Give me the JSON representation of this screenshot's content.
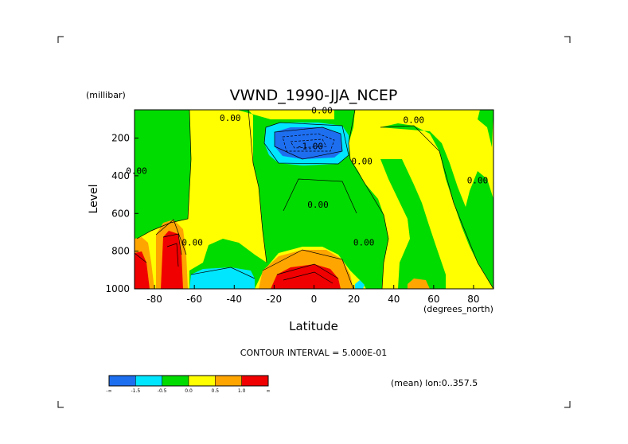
{
  "chart_data": {
    "type": "heatmap",
    "title": "VWND_1990-JJA_NCEP",
    "ylabel": "Level",
    "yunits": "(millibar)",
    "xlabel": "Latitude",
    "xunits": "(degrees_north)",
    "xlim": [
      -90,
      90
    ],
    "ylim": [
      1000,
      50
    ],
    "x_ticks": [
      -80,
      -60,
      -40,
      -20,
      0,
      20,
      40,
      60,
      80
    ],
    "y_ticks": [
      200,
      400,
      600,
      800,
      1000
    ],
    "contour_interval_text": "CONTOUR INTERVAL = 5.000E-01",
    "footer_text": "(mean) lon:0..357.5",
    "contour_labels": [
      {
        "text": "0.00",
        "lat": -42,
        "level": 110
      },
      {
        "text": "0.00",
        "lat": 4,
        "level": 70
      },
      {
        "text": "-1.00",
        "lat": -2,
        "level": 260
      },
      {
        "text": "0.00",
        "lat": 50,
        "level": 120
      },
      {
        "text": "0.00",
        "lat": 24,
        "level": 340
      },
      {
        "text": "0.00",
        "lat": 2,
        "level": 570
      },
      {
        "text": "0.00",
        "lat": -89,
        "level": 390
      },
      {
        "text": "0.00",
        "lat": 82,
        "level": 440
      },
      {
        "text": "0.00",
        "lat": -61,
        "level": 770
      },
      {
        "text": "0.00",
        "lat": 25,
        "level": 770
      }
    ],
    "legend": {
      "colors": [
        "#1e6ef0",
        "#00e6ff",
        "#00dc00",
        "#ffff00",
        "#ffa500",
        "#f00000"
      ],
      "tick_labels": [
        "-∞",
        "-1.5",
        "-0.5",
        "0.0",
        "0.5",
        "1.0",
        "∞"
      ]
    },
    "colors": {
      "blue": "#1e6ef0",
      "cyan": "#00e6ff",
      "green": "#00dc00",
      "yellow": "#ffff00",
      "orange": "#ffa500",
      "red": "#f00000"
    }
  }
}
